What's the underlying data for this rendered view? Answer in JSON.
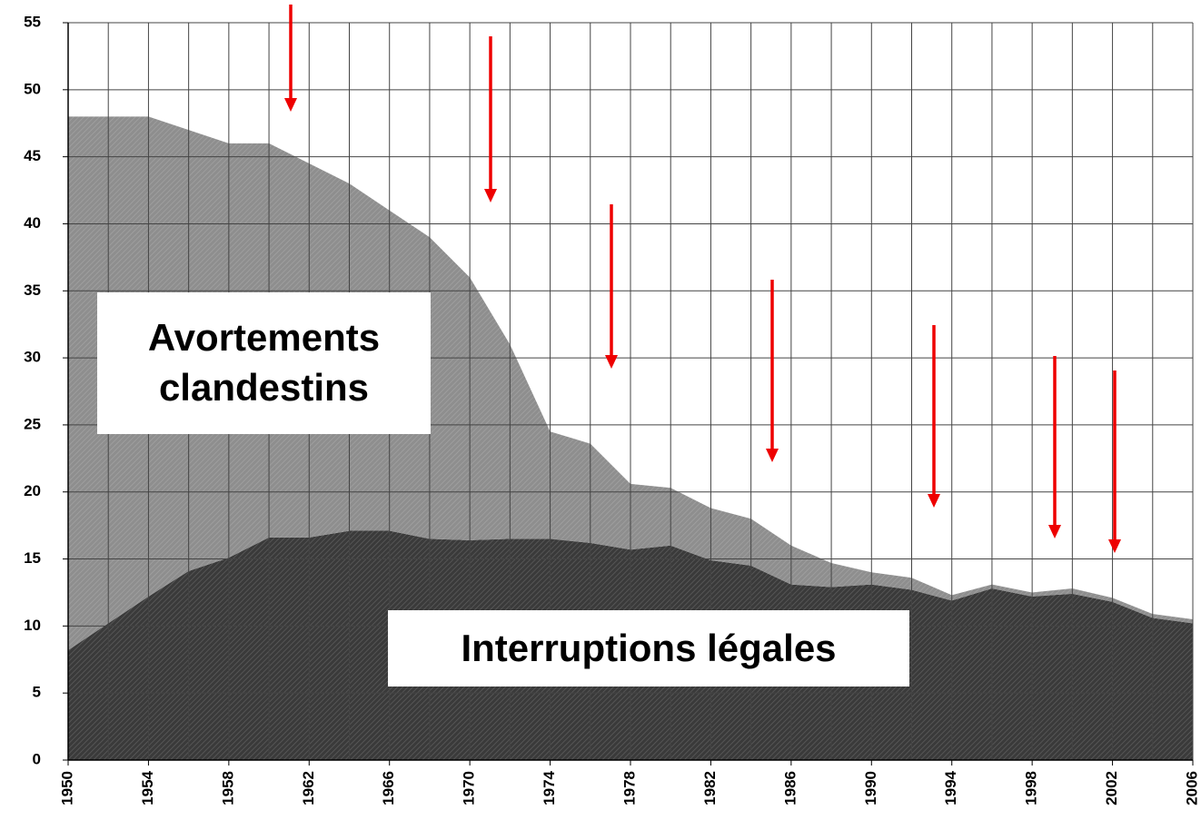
{
  "chart_data": {
    "type": "stacked_area",
    "x": [
      1950,
      1952,
      1954,
      1956,
      1958,
      1960,
      1962,
      1964,
      1966,
      1968,
      1970,
      1972,
      1974,
      1976,
      1978,
      1980,
      1982,
      1984,
      1986,
      1988,
      1990,
      1992,
      1994,
      1996,
      1998,
      2000,
      2002,
      2004,
      2006
    ],
    "series": [
      {
        "name": "Interruptions légales",
        "color": "#3a3a3a",
        "values": [
          8.2,
          10.2,
          12.2,
          14.1,
          15.1,
          16.6,
          16.6,
          17.1,
          17.1,
          16.5,
          16.4,
          16.5,
          16.5,
          16.2,
          15.7,
          16.0,
          14.9,
          14.5,
          13.1,
          12.9,
          13.1,
          12.7,
          11.9,
          12.8,
          12.2,
          12.4,
          11.8,
          10.6,
          10.2
        ]
      },
      {
        "name": "Avortements clandestins",
        "color": "#8e8e8e",
        "values": [
          39.8,
          37.8,
          35.8,
          32.9,
          30.9,
          29.4,
          27.9,
          25.9,
          23.9,
          22.5,
          19.6,
          14.5,
          8.0,
          7.4,
          4.9,
          4.3,
          3.9,
          3.5,
          2.9,
          1.8,
          0.9,
          0.9,
          0.4,
          0.3,
          0.3,
          0.4,
          0.3,
          0.3,
          0.3
        ]
      }
    ],
    "xlim": [
      1950,
      2006
    ],
    "xticks": [
      1950,
      1954,
      1958,
      1962,
      1966,
      1970,
      1974,
      1978,
      1982,
      1986,
      1990,
      1994,
      1998,
      2002,
      2006
    ],
    "ylim": [
      0,
      55
    ],
    "yticks": [
      0,
      5,
      10,
      15,
      20,
      25,
      30,
      35,
      40,
      45,
      50,
      55
    ],
    "grid": true
  }
}
